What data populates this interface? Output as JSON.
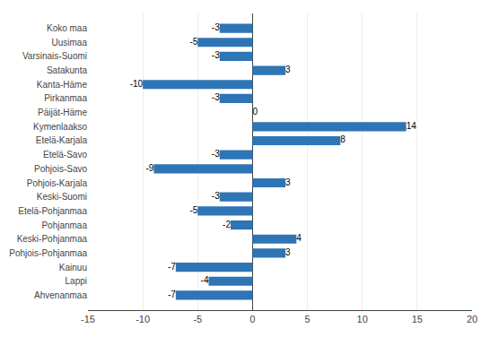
{
  "chart_data": {
    "type": "bar",
    "orientation": "horizontal",
    "categories": [
      "Ahvenanmaa",
      "Lappi",
      "Kainuu",
      "Pohjois-Pohjanmaa",
      "Keski-Pohjanmaa",
      "Pohjanmaa",
      "Etelä-Pohjanmaa",
      "Keski-Suomi",
      "Pohjois-Karjala",
      "Pohjois-Savo",
      "Etelä-Savo",
      "Etelä-Karjala",
      "Kymenlaakso",
      "Päijät-Häme",
      "Pirkanmaa",
      "Kanta-Häme",
      "Satakunta",
      "Varsinais-Suomi",
      "Uusimaa",
      "Koko maa"
    ],
    "values": [
      -7,
      -4,
      -7,
      3,
      4,
      -2,
      -5,
      -3,
      3,
      -9,
      -3,
      8,
      14,
      0,
      -3,
      -10,
      3,
      -3,
      -5,
      -3
    ],
    "color": "#2E75B6",
    "xlim": [
      -15,
      20
    ],
    "xticks": [
      -15,
      -10,
      -5,
      0,
      5,
      10,
      15,
      20
    ],
    "grid": true,
    "data_labels": true
  }
}
